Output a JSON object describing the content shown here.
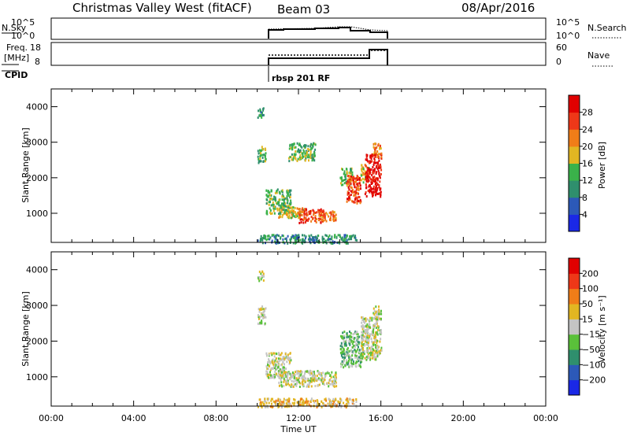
{
  "header": {
    "title": "Christmas Valley West (fitACF)",
    "beam": "Beam 03",
    "date": "08/Apr/2016"
  },
  "status_panels": {
    "nsky_label": "N.Sky",
    "nsearch_label": "N.Search",
    "freq_label_1": "Freq.",
    "freq_label_2": "[MHz]",
    "nave_label": "Nave",
    "cpid_label": "CPID",
    "left_ticks_top": [
      "10^5",
      "10^0"
    ],
    "right_ticks_top": [
      "10^5",
      "10^0"
    ],
    "left_ticks_freq": [
      "18",
      "8"
    ],
    "right_ticks_nave": [
      "60",
      "0"
    ],
    "cpid_text": "rbsp 201 RF"
  },
  "chart_data": [
    {
      "type": "heatmap",
      "name": "power",
      "ylabel": "Slant Range [km]",
      "xlabel": "",
      "xlim_hours": [
        0,
        24
      ],
      "ylim_km": [
        180,
        4500
      ],
      "yticks": [
        1000,
        2000,
        3000,
        4000
      ],
      "colorbar": {
        "label": "Power [dB]",
        "ticks": [
          4,
          8,
          12,
          16,
          20,
          24,
          28
        ],
        "range": [
          0,
          32
        ],
        "colors": [
          "#1a28e6",
          "#2c59b8",
          "#2f8f6d",
          "#3ab24a",
          "#e2b622",
          "#f07d18",
          "#ee3818",
          "#e00000"
        ]
      },
      "echo_regions": [
        {
          "t0": 10.0,
          "t1": 10.3,
          "r0": 3700,
          "r1": 4000,
          "level": 2
        },
        {
          "t0": 10.0,
          "t1": 10.4,
          "r0": 2450,
          "r1": 2900,
          "level": 3
        },
        {
          "t0": 11.5,
          "t1": 12.8,
          "r0": 2500,
          "r1": 3000,
          "level": 3
        },
        {
          "t0": 10.4,
          "t1": 11.6,
          "r0": 1000,
          "r1": 1700,
          "level": 3
        },
        {
          "t0": 11.0,
          "t1": 12.2,
          "r0": 900,
          "r1": 1200,
          "level": 4
        },
        {
          "t0": 12.0,
          "t1": 13.2,
          "r0": 750,
          "r1": 1150,
          "level": 6
        },
        {
          "t0": 13.0,
          "t1": 13.8,
          "r0": 800,
          "r1": 1100,
          "level": 5
        },
        {
          "t0": 14.0,
          "t1": 14.6,
          "r0": 1800,
          "r1": 2300,
          "level": 3
        },
        {
          "t0": 14.3,
          "t1": 15.0,
          "r0": 1300,
          "r1": 2100,
          "level": 6
        },
        {
          "t0": 15.0,
          "t1": 15.4,
          "r0": 1900,
          "r1": 2400,
          "level": 4
        },
        {
          "t0": 15.2,
          "t1": 16.0,
          "r0": 1500,
          "r1": 2700,
          "level": 7
        },
        {
          "t0": 15.6,
          "t1": 16.0,
          "r0": 2600,
          "r1": 3000,
          "level": 5
        },
        {
          "t0": 10.0,
          "t1": 14.8,
          "r0": 180,
          "r1": 420,
          "level": 2
        }
      ]
    },
    {
      "type": "heatmap",
      "name": "velocity",
      "ylabel": "Slant Range [km]",
      "xlabel": "Time UT",
      "xlim_hours": [
        0,
        24
      ],
      "xticks": [
        "00:00",
        "04:00",
        "08:00",
        "12:00",
        "16:00",
        "20:00",
        "00:00"
      ],
      "ylim_km": [
        180,
        4500
      ],
      "yticks": [
        1000,
        2000,
        3000,
        4000
      ],
      "colorbar": {
        "label": "Velocity [m s⁻¹]",
        "ticks": [
          "200",
          "100",
          "50",
          "15",
          "−15",
          "−50",
          "−100",
          "−200"
        ],
        "colors": [
          "#1a28e6",
          "#2c59b8",
          "#2f8f6d",
          "#5ac13a",
          "#c4c4c4",
          "#e2b622",
          "#f07d18",
          "#ee3818",
          "#e00000"
        ]
      },
      "echo_regions": [
        {
          "t0": 10.0,
          "t1": 10.3,
          "r0": 3700,
          "r1": 4000,
          "level": 4
        },
        {
          "t0": 10.0,
          "t1": 10.4,
          "r0": 2500,
          "r1": 3000,
          "level": 4
        },
        {
          "t0": 10.4,
          "t1": 11.6,
          "r0": 1000,
          "r1": 1700,
          "level": 4
        },
        {
          "t0": 11.0,
          "t1": 13.8,
          "r0": 750,
          "r1": 1200,
          "level": 4
        },
        {
          "t0": 14.0,
          "t1": 15.1,
          "r0": 1300,
          "r1": 2300,
          "level": 3
        },
        {
          "t0": 15.0,
          "t1": 16.0,
          "r0": 1500,
          "r1": 2700,
          "level": 4
        },
        {
          "t0": 15.6,
          "t1": 16.0,
          "r0": 2600,
          "r1": 3000,
          "level": 4
        },
        {
          "t0": 10.0,
          "t1": 14.8,
          "r0": 180,
          "r1": 420,
          "level": 5
        }
      ]
    }
  ]
}
